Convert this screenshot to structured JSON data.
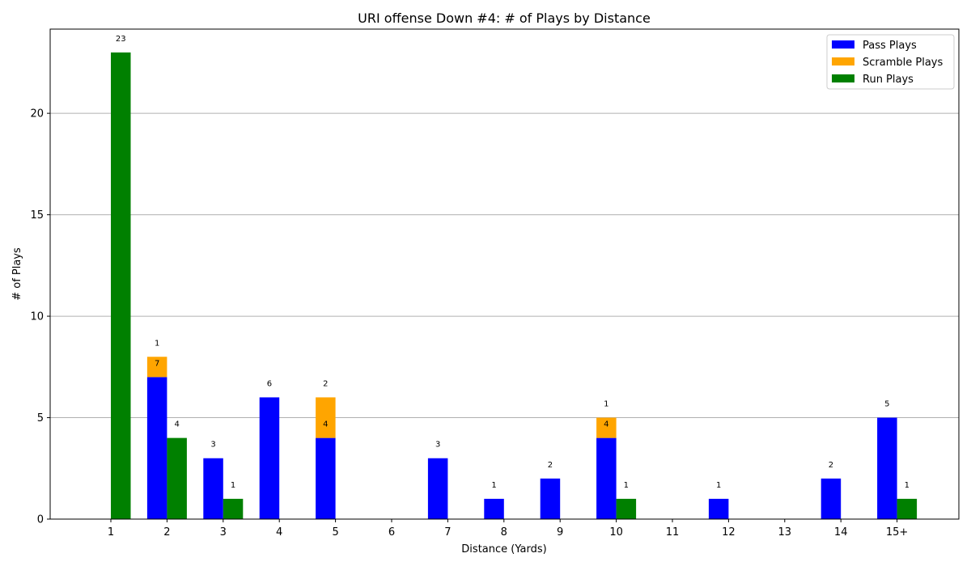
{
  "chart_data": {
    "type": "bar",
    "title": "URI offense Down #4: # of Plays by Distance",
    "xlabel": "Distance (Yards)",
    "ylabel": "# of Plays",
    "categories": [
      "1",
      "2",
      "3",
      "4",
      "5",
      "6",
      "7",
      "8",
      "9",
      "10",
      "11",
      "12",
      "13",
      "14",
      "15+"
    ],
    "ylim": [
      0,
      24.15
    ],
    "yticks": [
      0,
      5,
      10,
      15,
      20
    ],
    "grid": "y",
    "legend_position": "top-right",
    "series": [
      {
        "name": "Pass Plays",
        "color": "#0000ff",
        "group": "pass",
        "values": [
          0,
          7,
          3,
          6,
          4,
          0,
          3,
          1,
          2,
          4,
          0,
          1,
          0,
          2,
          5
        ]
      },
      {
        "name": "Scramble Plays",
        "color": "#ffa500",
        "group": "pass",
        "stacked_on": "Pass Plays",
        "values": [
          0,
          1,
          0,
          0,
          2,
          0,
          0,
          0,
          0,
          1,
          0,
          0,
          0,
          0,
          0
        ]
      },
      {
        "name": "Run Plays",
        "color": "#008000",
        "group": "run",
        "values": [
          23,
          4,
          1,
          0,
          0,
          0,
          0,
          0,
          0,
          1,
          0,
          0,
          0,
          0,
          1
        ]
      }
    ]
  }
}
